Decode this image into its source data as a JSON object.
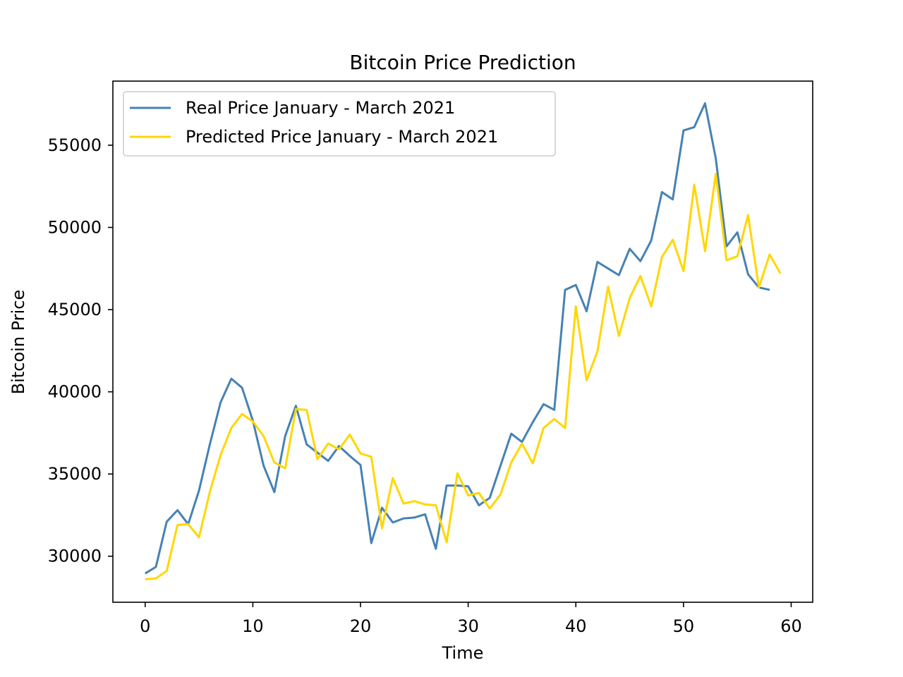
{
  "chart_data": {
    "type": "line",
    "title": "Bitcoin Price Prediction",
    "xlabel": "Time",
    "ylabel": "Bitcoin Price",
    "xlim": [
      -3,
      62
    ],
    "ylim": [
      27200,
      58900
    ],
    "xticks": [
      0,
      10,
      20,
      30,
      40,
      50,
      60
    ],
    "yticks": [
      30000,
      35000,
      40000,
      45000,
      50000,
      55000
    ],
    "grid": false,
    "legend_position": "top-left",
    "series": [
      {
        "name": "Real Price January - March 2021",
        "color": "#4682b4",
        "x": [
          0,
          1,
          2,
          3,
          4,
          5,
          6,
          7,
          8,
          9,
          10,
          11,
          12,
          13,
          14,
          15,
          16,
          17,
          18,
          19,
          20,
          21,
          22,
          23,
          24,
          25,
          26,
          27,
          28,
          29,
          30,
          31,
          32,
          33,
          34,
          35,
          36,
          37,
          38,
          39,
          40,
          41,
          42,
          43,
          44,
          45,
          46,
          47,
          48,
          49,
          50,
          51,
          52,
          53,
          54,
          55,
          56,
          57,
          58
        ],
        "values": [
          28950,
          29350,
          32100,
          32800,
          31950,
          34000,
          36800,
          39350,
          40800,
          40250,
          38250,
          35500,
          33900,
          37300,
          39150,
          36800,
          36300,
          35800,
          36700,
          36100,
          35550,
          30800,
          32950,
          32050,
          32300,
          32350,
          32550,
          30450,
          34300,
          34300,
          34250,
          33100,
          33550,
          35500,
          37450,
          36950,
          38150,
          39250,
          38900,
          46200,
          46500,
          44900,
          47900,
          47500,
          47100,
          48700,
          47950,
          49200,
          52150,
          51700,
          55900,
          56100,
          57550,
          54200,
          48850,
          49700,
          47150,
          46350,
          46200
        ]
      },
      {
        "name": "Predicted Price January - March 2021",
        "color": "#ffd700",
        "x": [
          0,
          1,
          2,
          3,
          4,
          5,
          6,
          7,
          8,
          9,
          10,
          11,
          12,
          13,
          14,
          15,
          16,
          17,
          18,
          19,
          20,
          21,
          22,
          23,
          24,
          25,
          26,
          27,
          28,
          29,
          30,
          31,
          32,
          33,
          34,
          35,
          36,
          37,
          38,
          39,
          40,
          41,
          42,
          43,
          44,
          45,
          46,
          47,
          48,
          49,
          50,
          51,
          52,
          53,
          54,
          55,
          56,
          57,
          58,
          59
        ],
        "values": [
          28600,
          28650,
          29100,
          31900,
          31950,
          31150,
          33900,
          36150,
          37800,
          38650,
          38200,
          37300,
          35700,
          35350,
          38950,
          38900,
          35900,
          36850,
          36500,
          37400,
          36250,
          36050,
          31700,
          34750,
          33200,
          33350,
          33150,
          33100,
          30850,
          35050,
          33700,
          33850,
          32900,
          33750,
          35700,
          36850,
          35650,
          37800,
          38350,
          37800,
          45200,
          40700,
          42450,
          46400,
          43400,
          45700,
          47050,
          45200,
          48200,
          49250,
          47350,
          52600,
          48550,
          53250,
          48000,
          48250,
          50750,
          46350,
          48350,
          47200
        ]
      }
    ]
  }
}
